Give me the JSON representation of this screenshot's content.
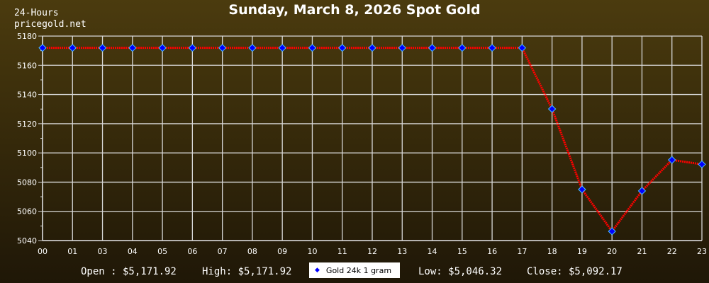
{
  "header": {
    "period": "24-Hours",
    "site": "pricegold.net"
  },
  "stats": {
    "open": "Open : $5,171.92",
    "high": "High: $5,171.92",
    "low": "Low: $5,046.32",
    "close": "Close: $5,092.17"
  },
  "chart_data": {
    "type": "line",
    "title": "Sunday, March 8, 2026 Spot Gold",
    "categories": [
      "00",
      "01",
      "03",
      "04",
      "05",
      "06",
      "07",
      "08",
      "09",
      "10",
      "11",
      "12",
      "13",
      "14",
      "15",
      "16",
      "17",
      "18",
      "19",
      "20",
      "21",
      "22",
      "23"
    ],
    "series": [
      {
        "name": "Gold 24k 1 gram",
        "values": [
          5171.92,
          5171.92,
          5171.92,
          5171.92,
          5171.92,
          5171.92,
          5171.92,
          5171.92,
          5171.92,
          5171.92,
          5171.92,
          5171.92,
          5171.92,
          5171.92,
          5171.92,
          5171.92,
          5171.92,
          5130.1,
          5075.0,
          5046.32,
          5074.0,
          5095.2,
          5092.17
        ]
      }
    ],
    "ylim": [
      5040,
      5180
    ],
    "yticks": [
      "5040",
      "5060",
      "5080",
      "5100",
      "5120",
      "5140",
      "5160",
      "5180"
    ],
    "grid": true,
    "legend": "bottom-center",
    "colors": {
      "line": "#ff0000",
      "marker": "#0000ff",
      "grid": "#d8d8d8"
    }
  }
}
